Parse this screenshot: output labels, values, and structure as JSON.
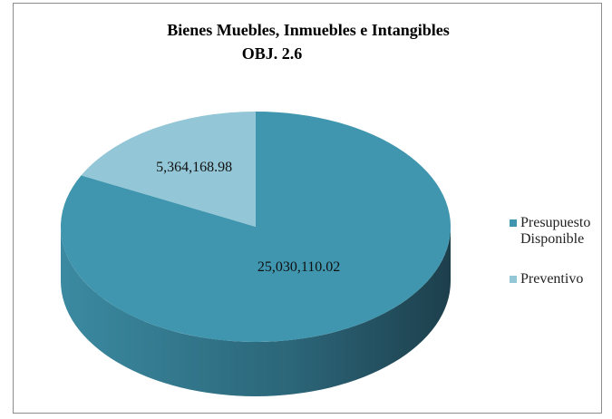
{
  "chart_data": {
    "type": "pie",
    "title": "Bienes Muebles, Inmuebles e Intangibles",
    "subtitle": "OBJ. 2.6",
    "categories": [
      "Presupuesto Disponible",
      "Preventivo"
    ],
    "values": [
      25030110.02,
      5364168.98
    ],
    "value_labels": [
      "25,030,110.02",
      "5,364,168.98"
    ],
    "colors": [
      "#3f96ae",
      "#93c6d6"
    ],
    "legend": "right"
  }
}
